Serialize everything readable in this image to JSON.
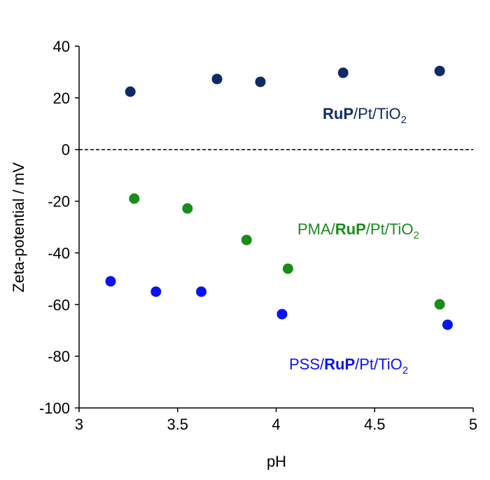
{
  "chart_data": {
    "type": "scatter",
    "xlabel": "pH",
    "ylabel": "Zeta-potential / mV",
    "xlim": [
      3,
      5
    ],
    "xticks": [
      3,
      3.5,
      4,
      4.5,
      5
    ],
    "ylim": [
      -100,
      40
    ],
    "yticks": [
      -100,
      -80,
      -60,
      -40,
      -20,
      0,
      20,
      40
    ],
    "hline": 0,
    "series": [
      {
        "color": "#0d2a66",
        "x": [
          3.26,
          3.7,
          3.92,
          4.34,
          4.83
        ],
        "values": [
          22.4,
          27.3,
          26.2,
          29.7,
          30.4
        ],
        "label": [
          {
            "text": "RuP",
            "style": "bold"
          },
          {
            "text": "/Pt/TiO"
          },
          {
            "text": "2",
            "style": "sub"
          }
        ]
      },
      {
        "color": "#1a8c1a",
        "x": [
          3.28,
          3.55,
          3.85,
          4.06,
          4.83
        ],
        "values": [
          -19,
          -22.8,
          -35,
          -46.1,
          -59.9
        ],
        "label": [
          {
            "text": "PMA/"
          },
          {
            "text": "RuP",
            "style": "bold"
          },
          {
            "text": "/Pt/TiO"
          },
          {
            "text": "2",
            "style": "sub"
          }
        ]
      },
      {
        "color": "#0a14f0",
        "x": [
          3.16,
          3.39,
          3.62,
          4.03,
          4.87
        ],
        "values": [
          -51,
          -55,
          -55,
          -63.7,
          -67.8
        ],
        "label": [
          {
            "text": "PSS/"
          },
          {
            "text": "RuP",
            "style": "bold"
          },
          {
            "text": "/Pt/TiO"
          },
          {
            "text": "2",
            "style": "sub"
          }
        ]
      }
    ]
  }
}
